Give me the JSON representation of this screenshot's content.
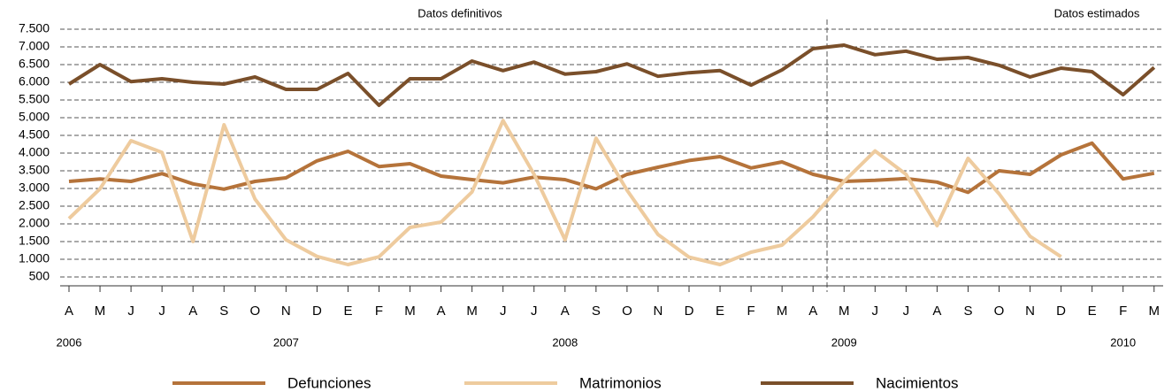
{
  "chart_data": {
    "type": "line",
    "annotations": [
      "Datos definitivos",
      "Datos estimados"
    ],
    "categories": [
      "A",
      "M",
      "J",
      "J",
      "A",
      "S",
      "O",
      "N",
      "D",
      "E",
      "F",
      "M",
      "A",
      "M",
      "J",
      "J",
      "A",
      "S",
      "O",
      "N",
      "D",
      "E",
      "F",
      "M",
      "A",
      "M",
      "J",
      "J",
      "A",
      "S",
      "O",
      "N",
      "D",
      "E",
      "F",
      "M"
    ],
    "x_groups": [
      "2006",
      null,
      null,
      null,
      null,
      null,
      null,
      "2007",
      null,
      null,
      null,
      null,
      null,
      null,
      null,
      null,
      "2008",
      null,
      null,
      null,
      null,
      null,
      null,
      null,
      null,
      "2009",
      null,
      null,
      null,
      null,
      null,
      null,
      null,
      null,
      "2010",
      null
    ],
    "ylim": [
      250,
      7500
    ],
    "yticks": [
      500,
      {
        "value": 1000,
        "label": "1.000"
      },
      {
        "value": 1500,
        "label": "1.500"
      },
      {
        "value": 2000,
        "label": "2.000"
      },
      {
        "value": 2500,
        "label": "2.500"
      },
      {
        "value": 3000,
        "label": "3.000"
      },
      {
        "value": 3500,
        "label": "3.500"
      },
      {
        "value": 4000,
        "label": "4.000"
      },
      {
        "value": 4500,
        "label": "4.500"
      },
      {
        "value": 5000,
        "label": "5.000"
      },
      {
        "value": 5500,
        "label": "5.500"
      },
      {
        "value": 6000,
        "label": "6.000"
      },
      {
        "value": 6500,
        "label": "6.500"
      },
      {
        "value": 7000,
        "label": "7.000"
      },
      {
        "value": 7500,
        "label": "7.500"
      }
    ],
    "grid": true,
    "series": [
      {
        "name": "Defunciones",
        "color": "#b5733a",
        "values": [
          3200,
          3270,
          3200,
          3420,
          3130,
          2980,
          3200,
          3300,
          3780,
          4050,
          3620,
          3700,
          3350,
          3250,
          3160,
          3320,
          3250,
          2990,
          3400,
          3600,
          3790,
          3900,
          3580,
          3750,
          3400,
          3200,
          3230,
          3280,
          3180,
          2890,
          3500,
          3400,
          3950,
          4280,
          3270,
          3430
        ]
      },
      {
        "name": "Matrimonios",
        "color": "#eecb9e",
        "values": [
          2150,
          2990,
          4350,
          4020,
          1500,
          4800,
          2700,
          1550,
          1080,
          850,
          1070,
          1900,
          2050,
          2900,
          4920,
          3400,
          1550,
          4420,
          2950,
          1700,
          1060,
          850,
          1200,
          1400,
          2200,
          3200,
          4060,
          3400,
          1950,
          3850,
          2850,
          1650,
          1070,
          null,
          null,
          null
        ]
      },
      {
        "name": "Nacimientos",
        "color": "#7a4f2a",
        "values": [
          5950,
          6500,
          6020,
          6100,
          6000,
          5950,
          6150,
          5800,
          5800,
          6250,
          5350,
          6100,
          6100,
          6600,
          6330,
          6570,
          6230,
          6300,
          6520,
          6170,
          6270,
          6330,
          5920,
          6350,
          6950,
          7050,
          6780,
          6880,
          6650,
          6700,
          6480,
          6150,
          6400,
          6300,
          5650,
          6420
        ]
      }
    ]
  }
}
